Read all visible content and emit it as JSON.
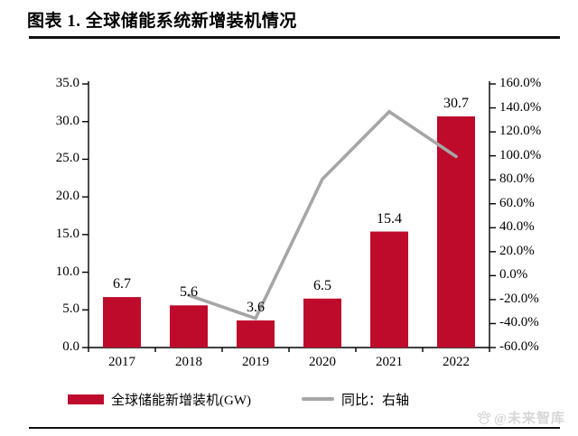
{
  "header": {
    "title": "图表 1. 全球储能系统新增装机情况"
  },
  "chart_data": {
    "type": "bar",
    "title": "全球储能系统新增装机情况",
    "categories": [
      "2017",
      "2018",
      "2019",
      "2020",
      "2021",
      "2022"
    ],
    "series": [
      {
        "name": "全球储能新增装机(GW)",
        "type": "bar",
        "axis": "left",
        "color": "#be0b2c",
        "values": [
          6.7,
          5.6,
          3.6,
          6.5,
          15.4,
          30.7
        ],
        "point_labels": [
          "6.7",
          "5.6",
          "3.6",
          "6.5",
          "15.4",
          "30.7"
        ]
      },
      {
        "name": "同比：右轴",
        "type": "line",
        "axis": "right",
        "color": "#a6a6a6",
        "values": [
          null,
          -16.4,
          -35.7,
          80.6,
          136.9,
          99.4
        ]
      }
    ],
    "left_axis": {
      "min": 0,
      "max": 35,
      "step": 5,
      "tick_labels": [
        "0.0",
        "5.0",
        "10.0",
        "15.0",
        "20.0",
        "25.0",
        "30.0",
        "35.0"
      ]
    },
    "right_axis": {
      "min": -60,
      "max": 160,
      "step": 20,
      "tick_labels": [
        "-60.0%",
        "-40.0%",
        "-20.0%",
        "0.0%",
        "20.0%",
        "40.0%",
        "60.0%",
        "80.0%",
        "100.0%",
        "120.0%",
        "140.0%",
        "160.0%"
      ]
    },
    "grid": false,
    "legend_position": "bottom",
    "axis_color": "#000000"
  },
  "footer": {
    "watermark": "@未来智库"
  }
}
